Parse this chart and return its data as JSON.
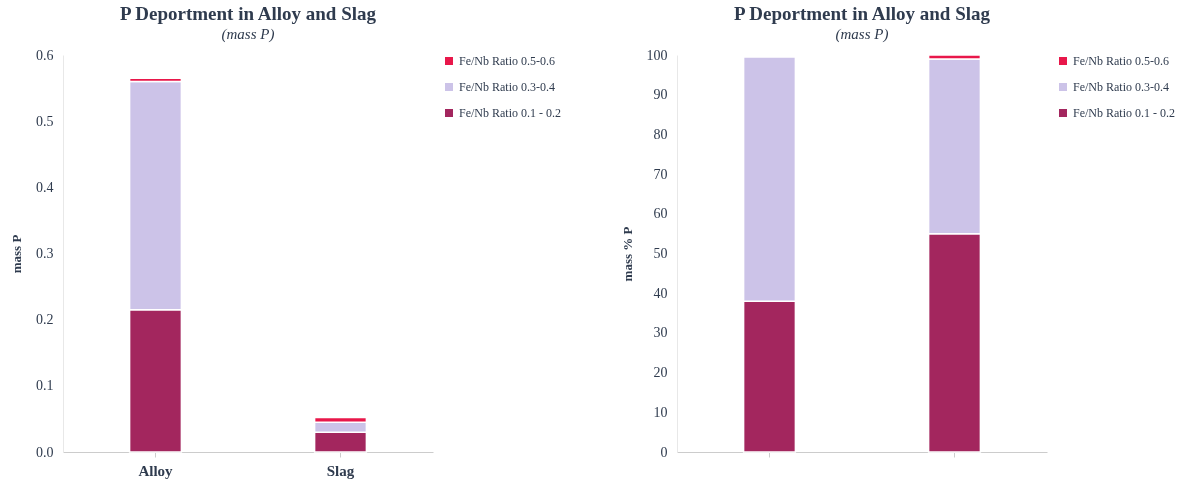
{
  "chart_data": [
    {
      "type": "bar",
      "title": "P Deportment in Alloy and Slag",
      "subtitle": "(mass P)",
      "ylabel": "mass P",
      "categories": [
        "Alloy",
        "Slag"
      ],
      "stacked": true,
      "legend": "right",
      "grid": false,
      "ylim": [
        0,
        0.6
      ],
      "yticks": [
        {
          "value": 0,
          "label": "0.0"
        },
        0.1,
        0.2,
        0.3,
        0.4,
        0.5,
        0.6
      ],
      "series": [
        {
          "name": "Fe/Nb Ratio 0.1 - 0.2",
          "color": "#a3265e",
          "values": [
            0.215,
            0.03
          ]
        },
        {
          "name": "Fe/Nb Ratio 0.3-0.4",
          "color": "#ccc3e8",
          "values": [
            0.345,
            0.015
          ]
        },
        {
          "name": "Fe/Nb Ratio 0.5-0.6",
          "color": "#e8174a",
          "values": [
            0.005,
            0.007
          ]
        }
      ]
    },
    {
      "type": "bar",
      "title": "P Deportment in Alloy and Slag",
      "subtitle": "(mass P)",
      "ylabel": "mass % P",
      "categories": [
        null,
        null
      ],
      "stacked": true,
      "legend": "right",
      "grid": false,
      "ylim": [
        0,
        100
      ],
      "yticks": [
        0,
        10,
        20,
        30,
        40,
        50,
        60,
        70,
        80,
        90,
        100
      ],
      "series": [
        {
          "name": "Fe/Nb Ratio 0.1 - 0.2",
          "color": "#a3265e",
          "values": [
            38,
            55
          ]
        },
        {
          "name": "Fe/Nb Ratio 0.3-0.4",
          "color": "#ccc3e8",
          "values": [
            61.5,
            44
          ]
        },
        {
          "name": "Fe/Nb Ratio 0.5-0.6",
          "color": "#e8174a",
          "values": [
            null,
            1
          ]
        }
      ]
    }
  ]
}
